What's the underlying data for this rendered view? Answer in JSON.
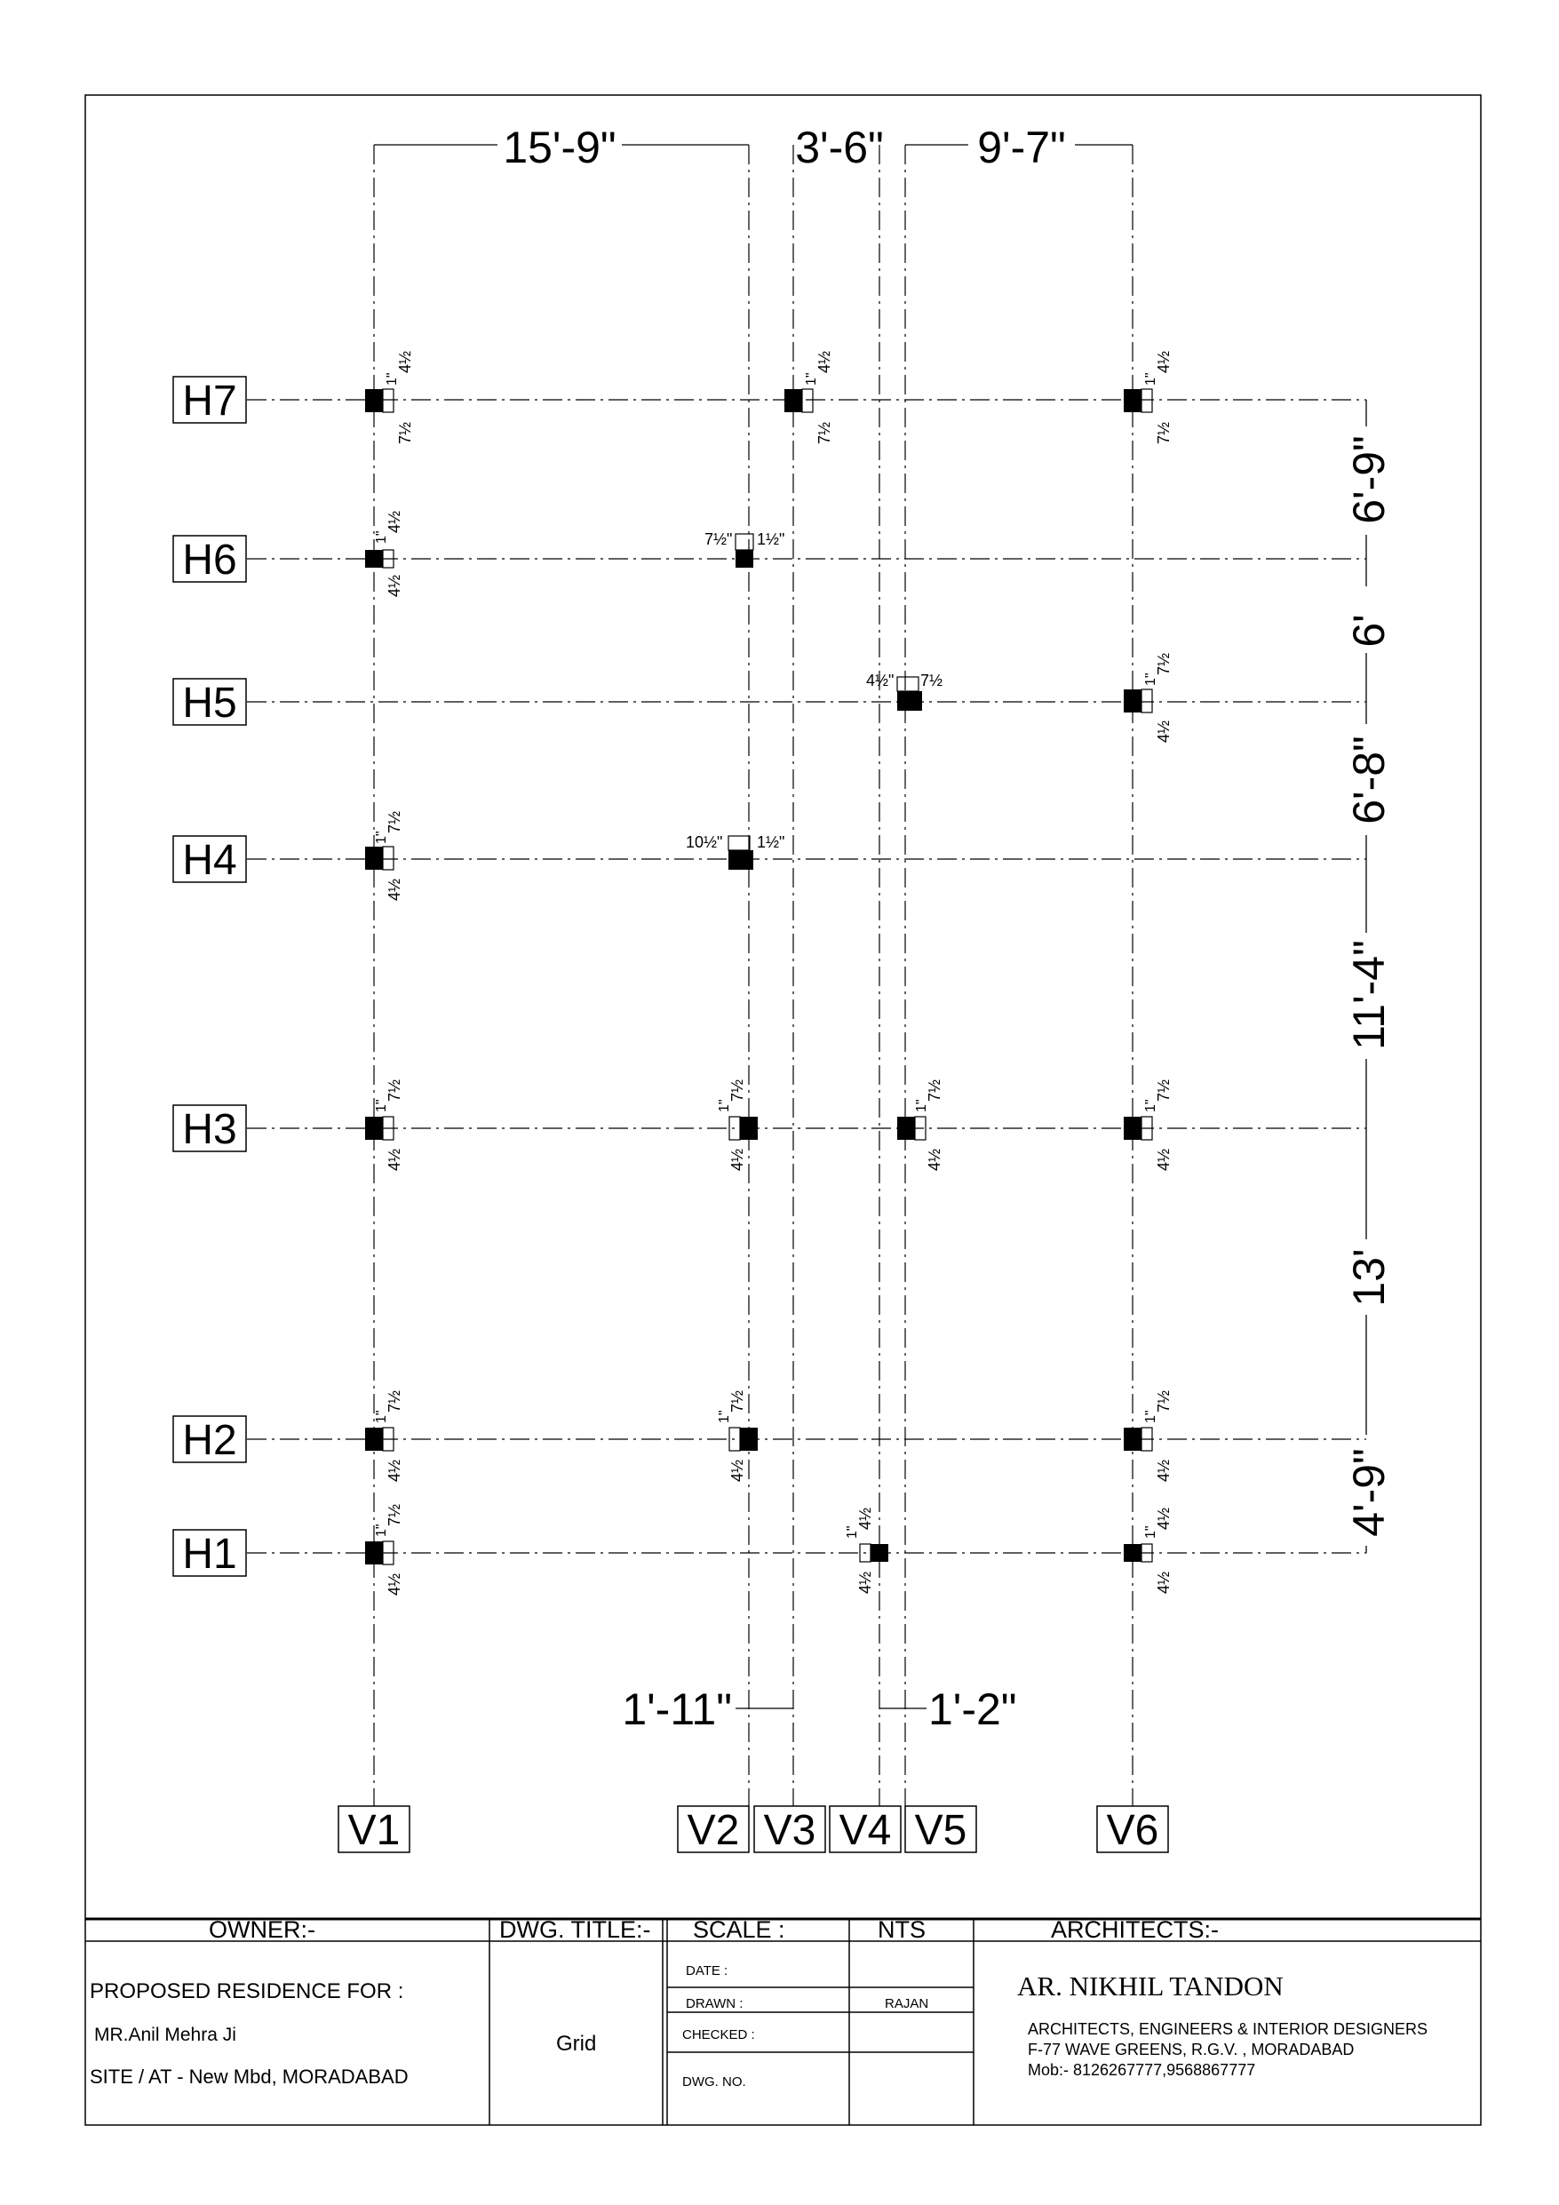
{
  "drawing": {
    "horizontal_grids": [
      "H7",
      "H6",
      "H5",
      "H4",
      "H3",
      "H2",
      "H1"
    ],
    "vertical_grids": [
      "V1",
      "V2",
      "V3",
      "V4",
      "V5",
      "V6"
    ],
    "top_dimensions": [
      "15'-9\"",
      "3'-6\"",
      "9'-7\""
    ],
    "bottom_dimensions": [
      "1'-11\"",
      "1'-2\""
    ],
    "right_dimensions": [
      "6'-9\"",
      "6'",
      "6'-8\"",
      "11'-4\"",
      "13'",
      "4'-9\""
    ],
    "columns": [
      {
        "grid": "V1-H7",
        "top": "4½",
        "bottom": "7½",
        "side": "1\""
      },
      {
        "grid": "V3-H7",
        "top": "4½",
        "bottom": "7½",
        "side": "1\""
      },
      {
        "grid": "V6-H7",
        "top": "4½",
        "bottom": "7½",
        "side": "1\""
      },
      {
        "grid": "V1-H6",
        "top": "4½",
        "bottom": "4½",
        "side": "1\""
      },
      {
        "grid": "V2-H6",
        "left": "7½\"",
        "right": "1½\""
      },
      {
        "grid": "V5-H5",
        "left": "4½\"",
        "right": "7½"
      },
      {
        "grid": "V6-H5",
        "top": "7½",
        "bottom": "4½",
        "side": "1\""
      },
      {
        "grid": "V1-H4",
        "top": "7½",
        "bottom": "4½",
        "side": "1\""
      },
      {
        "grid": "V2-H4",
        "left": "10½\"",
        "right": "1½\""
      },
      {
        "grid": "V1-H3",
        "top": "7½",
        "bottom": "4½",
        "side": "1\""
      },
      {
        "grid": "V2-H3",
        "top": "7½",
        "bottom": "4½",
        "side": "1\""
      },
      {
        "grid": "V5-H3",
        "top": "7½",
        "bottom": "4½",
        "side": "1\""
      },
      {
        "grid": "V6-H3",
        "top": "7½",
        "bottom": "4½",
        "side": "1\""
      },
      {
        "grid": "V1-H2",
        "top": "7½",
        "bottom": "4½",
        "side": "1\""
      },
      {
        "grid": "V2-H2",
        "top": "7½",
        "bottom": "4½",
        "side": "1\""
      },
      {
        "grid": "V6-H2",
        "top": "7½",
        "bottom": "4½",
        "side": "1\""
      },
      {
        "grid": "V1-H1",
        "top": "7½",
        "bottom": "4½",
        "side": "1\""
      },
      {
        "grid": "V4-H1",
        "top": "4½",
        "bottom": "4½",
        "side": "1\""
      },
      {
        "grid": "V6-H1",
        "top": "4½",
        "bottom": "4½",
        "side": "1\""
      }
    ]
  },
  "title_block": {
    "owner_label": "OWNER:-",
    "dwg_title_label": "DWG. TITLE:-",
    "scale_label": "SCALE :",
    "scale_value": "NTS",
    "architects_label": "ARCHITECTS:-",
    "project_line": "PROPOSED RESIDENCE FOR :",
    "owner_name": "MR.Anil Mehra Ji",
    "site": "SITE / AT - New Mbd, MORADABAD",
    "dwg_title": "Grid",
    "date_label": "DATE :",
    "drawn_label": "DRAWN :",
    "drawn_by": "RAJAN",
    "checked_label": "CHECKED :",
    "dwg_no_label": "DWG. NO.",
    "architect_name": "AR. NIKHIL TANDON",
    "firm_line1": "ARCHITECTS, ENGINEERS & INTERIOR DESIGNERS",
    "firm_line2": "F-77 WAVE GREENS, R.G.V. , MORADABAD",
    "firm_line3": "Mob:- 8126267777,9568867777"
  }
}
